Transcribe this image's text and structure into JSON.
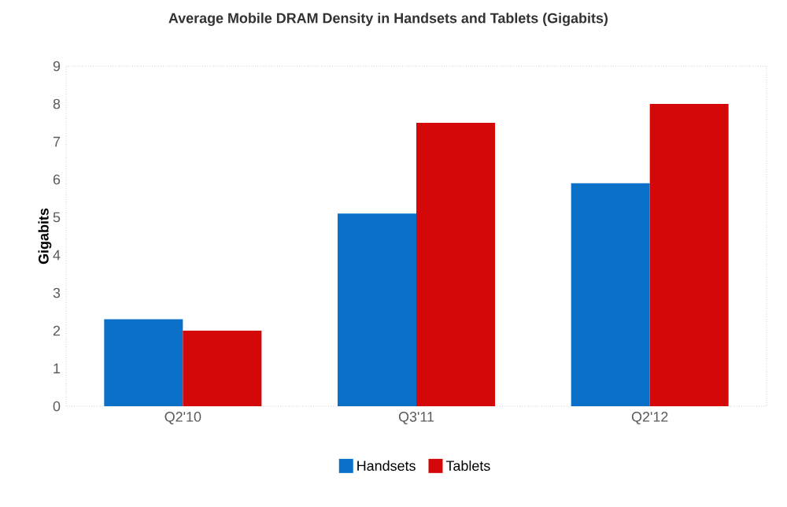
{
  "chart_data": {
    "type": "bar",
    "title": "Average Mobile DRAM Density in Handsets and Tablets (Gigabits)",
    "ylabel": "Gigabits",
    "categories": [
      "Q2'10",
      "Q3'11",
      "Q2'12"
    ],
    "series": [
      {
        "name": "Handsets",
        "color": "#0a70c8",
        "values": [
          2.3,
          5.1,
          5.9
        ]
      },
      {
        "name": "Tablets",
        "color": "#d40808",
        "values": [
          2.0,
          7.5,
          8.0
        ]
      }
    ],
    "ylim": [
      0,
      9
    ],
    "yticks": [
      0,
      1,
      2,
      3,
      4,
      5,
      6,
      7,
      8,
      9
    ],
    "legend": "bottom"
  }
}
